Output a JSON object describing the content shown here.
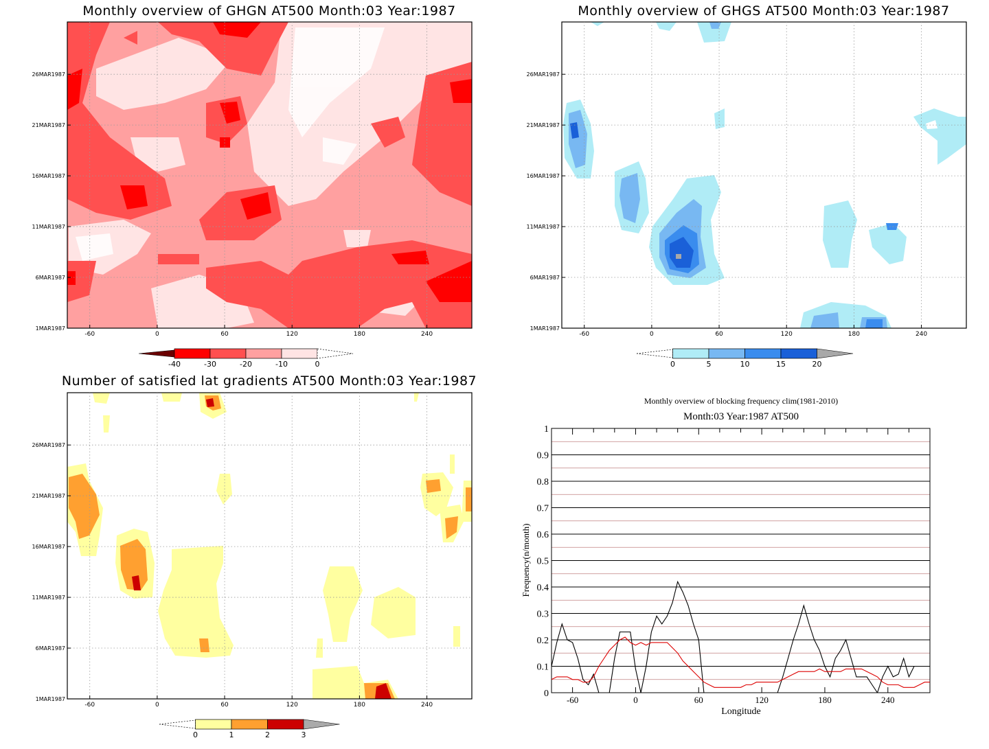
{
  "colors": {
    "ghgn": [
      "#6b0000",
      "#ff0000",
      "#ff5050",
      "#ffa0a0",
      "#ffe4e4"
    ],
    "ghgs": [
      "#b0ecf6",
      "#78b8f2",
      "#3a8cee",
      "#1a60d8",
      "#a8a8a8"
    ],
    "sat": [
      "#ffffa0",
      "#ffa030",
      "#cc0000",
      "#aaaaaa"
    ],
    "clim_line": "#dd0000",
    "freq_line": "#000000",
    "grid_dark": "#000000",
    "grid_light": "#c08080"
  },
  "chart_data": [
    {
      "id": "ghgn",
      "type": "heatmap",
      "title": "Monthly overview of GHGN AT500 Month:03 Year:1987",
      "x_ticks": [
        "-60",
        "0",
        "60",
        "120",
        "180",
        "240"
      ],
      "y_ticks": [
        "1MAR1987",
        "6MAR1987",
        "11MAR1987",
        "16MAR1987",
        "21MAR1987",
        "26MAR1987"
      ],
      "xlim": [
        -80,
        280
      ],
      "colorbar": {
        "labels": [
          "-40",
          "-30",
          "-20",
          "-10",
          "0"
        ]
      }
    },
    {
      "id": "ghgs",
      "type": "heatmap",
      "title": "Monthly overview of GHGS AT500 Month:03 Year:1987",
      "x_ticks": [
        "-60",
        "0",
        "60",
        "120",
        "180",
        "240"
      ],
      "y_ticks": [
        "1MAR1987",
        "6MAR1987",
        "11MAR1987",
        "16MAR1987",
        "21MAR1987",
        "26MAR1987"
      ],
      "xlim": [
        -80,
        280
      ],
      "colorbar": {
        "labels": [
          "0",
          "5",
          "10",
          "15",
          "20"
        ]
      }
    },
    {
      "id": "sat",
      "type": "heatmap",
      "title": "Number of satisfied lat gradients AT500 Month:03 Year:1987",
      "x_ticks": [
        "-60",
        "0",
        "60",
        "120",
        "180",
        "240"
      ],
      "y_ticks": [
        "1MAR1987",
        "6MAR1987",
        "11MAR1987",
        "16MAR1987",
        "21MAR1987",
        "26MAR1987"
      ],
      "xlim": [
        -80,
        280
      ],
      "colorbar": {
        "labels": [
          "0",
          "1",
          "2",
          "3"
        ]
      }
    },
    {
      "id": "freq",
      "type": "line",
      "title": "Monthly overview of blocking frequency clim(1981-2010)",
      "subtitle": "Month:03 Year:1987  AT500",
      "xlabel": "Longitude",
      "ylabel": "Frequency(n/month)",
      "x_ticks": [
        "-60",
        "0",
        "60",
        "120",
        "180",
        "240"
      ],
      "y_ticks": [
        "0",
        "0.1",
        "0.2",
        "0.3",
        "0.4",
        "0.5",
        "0.6",
        "0.7",
        "0.8",
        "0.9",
        "1"
      ],
      "xlim": [
        -80,
        280
      ],
      "ylim": [
        0,
        1
      ],
      "series": [
        {
          "x": [
            -80,
            -75,
            -70,
            -65,
            -60,
            -55,
            -50,
            -45,
            -40,
            -35,
            -30,
            -25,
            -20,
            -15,
            -10,
            -5,
            0,
            5,
            10,
            15,
            20,
            25,
            30,
            35,
            40,
            45,
            50,
            55,
            60,
            65,
            70,
            75,
            80,
            85,
            90,
            95,
            100,
            105,
            110,
            115,
            120,
            125,
            130,
            135,
            140,
            145,
            150,
            155,
            160,
            165,
            170,
            175,
            180,
            185,
            190,
            195,
            200,
            205,
            210,
            215,
            220,
            225,
            230,
            235,
            240,
            245,
            250,
            255,
            260,
            265,
            270,
            275,
            280
          ],
          "y": [
            0.1,
            0.19,
            0.26,
            0.2,
            0.19,
            0.13,
            0.05,
            0.03,
            0.07,
            0.0,
            0.0,
            0.0,
            0.13,
            0.23,
            0.23,
            0.23,
            0.09,
            0.0,
            0.1,
            0.23,
            0.29,
            0.26,
            0.29,
            0.34,
            0.42,
            0.38,
            0.33,
            0.26,
            0.2,
            0.0,
            0.0,
            0.0,
            0.0,
            0.0,
            0.0,
            0.0,
            0.0,
            0.0,
            0.0,
            0.0,
            0.0,
            0.0,
            0.0,
            0.0,
            0.06,
            0.13,
            0.2,
            0.26,
            0.33,
            0.26,
            0.2,
            0.16,
            0.1,
            0.06,
            0.13,
            0.16,
            0.2,
            0.13,
            0.06,
            0.06,
            0.06,
            0.03,
            0.0,
            0.06,
            0.1,
            0.06,
            0.07,
            0.13,
            0.06,
            0.1,
            0.1,
            0.1,
            0.1
          ]
        },
        {
          "x": [
            -80,
            -75,
            -70,
            -65,
            -60,
            -55,
            -50,
            -45,
            -40,
            -35,
            -30,
            -25,
            -20,
            -15,
            -10,
            -5,
            0,
            5,
            10,
            15,
            20,
            25,
            30,
            35,
            40,
            45,
            50,
            55,
            60,
            65,
            70,
            75,
            80,
            85,
            90,
            95,
            100,
            105,
            110,
            115,
            120,
            125,
            130,
            135,
            140,
            145,
            150,
            155,
            160,
            165,
            170,
            175,
            180,
            185,
            190,
            195,
            200,
            205,
            210,
            215,
            220,
            225,
            230,
            235,
            240,
            245,
            250,
            255,
            260,
            265,
            270,
            275,
            280
          ],
          "y": [
            0.05,
            0.06,
            0.06,
            0.06,
            0.05,
            0.05,
            0.04,
            0.04,
            0.06,
            0.1,
            0.13,
            0.16,
            0.18,
            0.2,
            0.21,
            0.19,
            0.18,
            0.19,
            0.18,
            0.19,
            0.19,
            0.19,
            0.19,
            0.17,
            0.15,
            0.12,
            0.1,
            0.08,
            0.06,
            0.04,
            0.03,
            0.02,
            0.02,
            0.02,
            0.02,
            0.02,
            0.02,
            0.03,
            0.03,
            0.04,
            0.04,
            0.04,
            0.04,
            0.04,
            0.05,
            0.06,
            0.07,
            0.08,
            0.08,
            0.08,
            0.08,
            0.09,
            0.08,
            0.08,
            0.08,
            0.08,
            0.09,
            0.09,
            0.09,
            0.09,
            0.08,
            0.07,
            0.06,
            0.04,
            0.03,
            0.03,
            0.03,
            0.02,
            0.02,
            0.02,
            0.03,
            0.04,
            0.04
          ]
        }
      ]
    }
  ]
}
